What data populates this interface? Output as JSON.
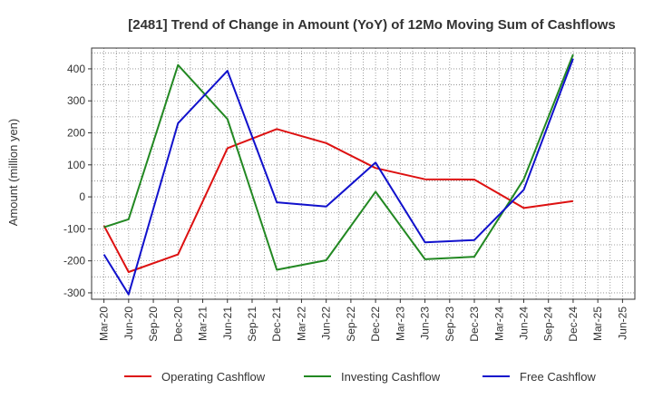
{
  "chart_data": {
    "type": "line",
    "title": "[2481]  Trend of Change in Amount (YoY) of 12Mo Moving Sum of Cashflows",
    "xlabel": "",
    "ylabel": "Amount (million yen)",
    "ylim": [
      -320,
      465
    ],
    "yticks": [
      -300,
      -200,
      -100,
      0,
      100,
      200,
      300,
      400
    ],
    "ytick_labels": [
      "-300",
      "-200",
      "-100",
      "0",
      "100",
      "200",
      "300",
      "400"
    ],
    "categories": [
      "Mar-20",
      "Jun-20",
      "Sep-20",
      "Dec-20",
      "Mar-21",
      "Jun-21",
      "Sep-21",
      "Dec-21",
      "Mar-22",
      "Jun-22",
      "Sep-22",
      "Dec-22",
      "Mar-23",
      "Jun-23",
      "Sep-23",
      "Dec-23",
      "Mar-24",
      "Jun-24",
      "Sep-24",
      "Dec-24",
      "Mar-25",
      "Jun-25"
    ],
    "grid": true,
    "legend_position": "bottom",
    "series": [
      {
        "name": "Operating Cashflow",
        "color": "#dd1111",
        "points": [
          [
            0,
            -90
          ],
          [
            1,
            -235
          ],
          [
            3,
            -180
          ],
          [
            5,
            152
          ],
          [
            7,
            212
          ],
          [
            9,
            168
          ],
          [
            11,
            90
          ],
          [
            13,
            55
          ],
          [
            15,
            54
          ],
          [
            17,
            -35
          ],
          [
            19,
            -13
          ]
        ]
      },
      {
        "name": "Investing Cashflow",
        "color": "#228822",
        "points": [
          [
            0,
            -95
          ],
          [
            1,
            -70
          ],
          [
            3,
            412
          ],
          [
            5,
            243
          ],
          [
            7,
            -228
          ],
          [
            9,
            -198
          ],
          [
            11,
            16
          ],
          [
            13,
            -195
          ],
          [
            15,
            -187
          ],
          [
            17,
            55
          ],
          [
            19,
            445
          ]
        ]
      },
      {
        "name": "Free Cashflow",
        "color": "#1111cc",
        "points": [
          [
            0,
            -180
          ],
          [
            1,
            -305
          ],
          [
            3,
            230
          ],
          [
            5,
            394
          ],
          [
            7,
            -17
          ],
          [
            9,
            -30
          ],
          [
            11,
            107
          ],
          [
            13,
            -142
          ],
          [
            15,
            -135
          ],
          [
            17,
            22
          ],
          [
            19,
            432
          ]
        ]
      }
    ]
  }
}
